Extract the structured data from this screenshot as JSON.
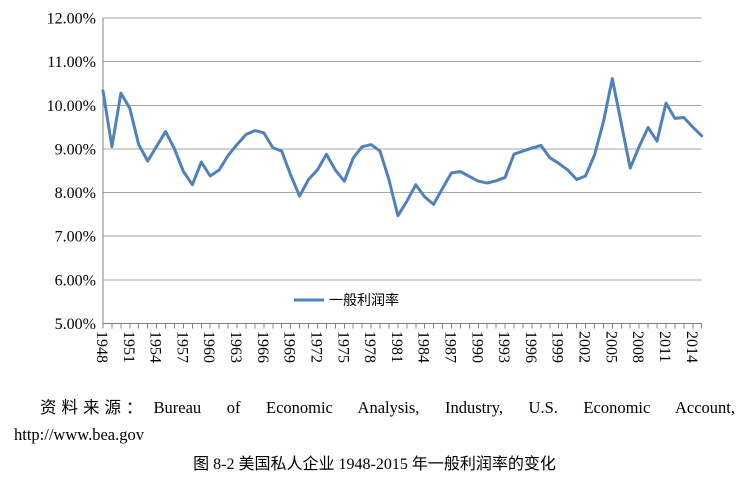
{
  "chart_data": {
    "type": "line",
    "title": "",
    "xlabel": "",
    "ylabel": "",
    "x": [
      1948,
      1949,
      1950,
      1951,
      1952,
      1953,
      1954,
      1955,
      1956,
      1957,
      1958,
      1959,
      1960,
      1961,
      1962,
      1963,
      1964,
      1965,
      1966,
      1967,
      1968,
      1969,
      1970,
      1971,
      1972,
      1973,
      1974,
      1975,
      1976,
      1977,
      1978,
      1979,
      1980,
      1981,
      1982,
      1983,
      1984,
      1985,
      1986,
      1987,
      1988,
      1989,
      1990,
      1991,
      1992,
      1993,
      1994,
      1995,
      1996,
      1997,
      1998,
      1999,
      2000,
      2001,
      2002,
      2003,
      2004,
      2005,
      2006,
      2007,
      2008,
      2009,
      2010,
      2011,
      2012,
      2013,
      2014,
      2015
    ],
    "series": [
      {
        "name": "一般利润率",
        "values": [
          10.33,
          9.05,
          10.28,
          9.93,
          9.1,
          8.72,
          9.06,
          9.4,
          9.0,
          8.48,
          8.18,
          8.7,
          8.38,
          8.52,
          8.85,
          9.1,
          9.33,
          9.42,
          9.37,
          9.03,
          8.95,
          8.4,
          7.92,
          8.3,
          8.52,
          8.88,
          8.52,
          8.26,
          8.79,
          9.05,
          9.1,
          8.95,
          8.3,
          7.47,
          7.8,
          8.18,
          7.9,
          7.73,
          8.1,
          8.45,
          8.48,
          8.37,
          8.26,
          8.22,
          8.27,
          8.35,
          8.88,
          8.95,
          9.02,
          9.08,
          8.8,
          8.67,
          8.52,
          8.3,
          8.38,
          8.86,
          9.62,
          10.61,
          9.58,
          8.56,
          9.05,
          9.49,
          9.18,
          10.05,
          9.7,
          9.72,
          9.5,
          9.3
        ]
      }
    ],
    "ylim": [
      5,
      12
    ],
    "y_tick_labels": [
      "12.00%",
      "11.00%",
      "10.00%",
      "9.00%",
      "8.00%",
      "7.00%",
      "6.00%",
      "5.00%"
    ],
    "y_tick_values": [
      12,
      11,
      10,
      9,
      8,
      7,
      6,
      5
    ],
    "x_tick_label_years": [
      1948,
      1951,
      1954,
      1957,
      1960,
      1963,
      1966,
      1969,
      1972,
      1975,
      1978,
      1981,
      1984,
      1987,
      1990,
      1993,
      1996,
      1999,
      2002,
      2005,
      2008,
      2011,
      2014
    ],
    "grid": "horizontal-on",
    "legend_position": "bottom-center",
    "line_color": "#4F81BD",
    "gridline_color": "#A6A6A6",
    "axis_color": "#808080"
  },
  "legend": {
    "label": "一般利润率"
  },
  "footer": {
    "source_prefix": "资料来源：",
    "source_text": "Bureau of Economic Analysis, Industry, U.S. Economic Account,",
    "source_url": "http://www.bea.gov",
    "caption": "图 8-2 美国私人企业 1948-2015 年一般利润率的变化"
  }
}
